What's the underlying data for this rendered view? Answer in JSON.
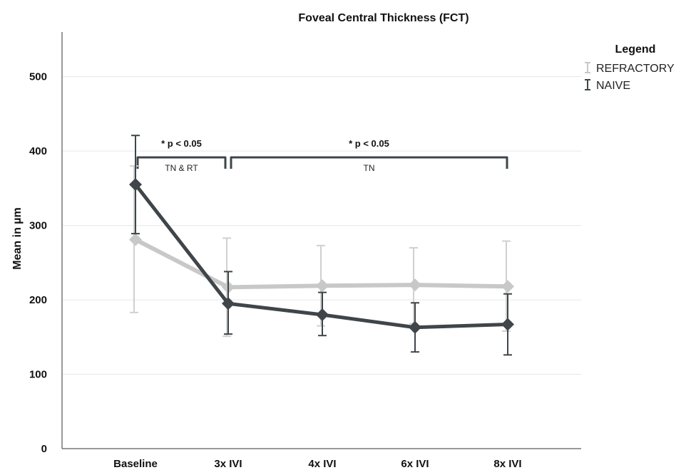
{
  "chart_data": {
    "type": "line",
    "title": "Foveal Central Thickness (FCT)",
    "xlabel": "",
    "ylabel": "Mean in µm",
    "categories": [
      "Baseline",
      "3x IVI",
      "4x IVI",
      "6x IVI",
      "8x IVI"
    ],
    "ylim": [
      0,
      560
    ],
    "yticks": [
      0,
      100,
      200,
      300,
      400,
      500
    ],
    "grid": true,
    "legend": {
      "title": "Legend",
      "placement": "top-right",
      "entries": [
        "REFRACTORY",
        "NAIVE"
      ]
    },
    "series": [
      {
        "name": "REFRACTORY",
        "color": "#c8c8c8",
        "values": [
          281,
          217,
          219,
          220,
          218
        ],
        "error_low": [
          183,
          151,
          165,
          168,
          158
        ],
        "error_high": [
          380,
          283,
          273,
          270,
          279
        ]
      },
      {
        "name": "NAIVE",
        "color": "#3f4549",
        "values": [
          355,
          195,
          180,
          163,
          167
        ],
        "error_low": [
          289,
          154,
          152,
          130,
          126
        ],
        "error_high": [
          421,
          238,
          210,
          196,
          208
        ]
      }
    ],
    "annotations": [
      {
        "label": "* p < 0.05",
        "group": "TN & RT",
        "from": 0,
        "to": 1
      },
      {
        "label": "* p < 0.05",
        "group": "TN",
        "from": 1,
        "to": 4
      }
    ]
  }
}
